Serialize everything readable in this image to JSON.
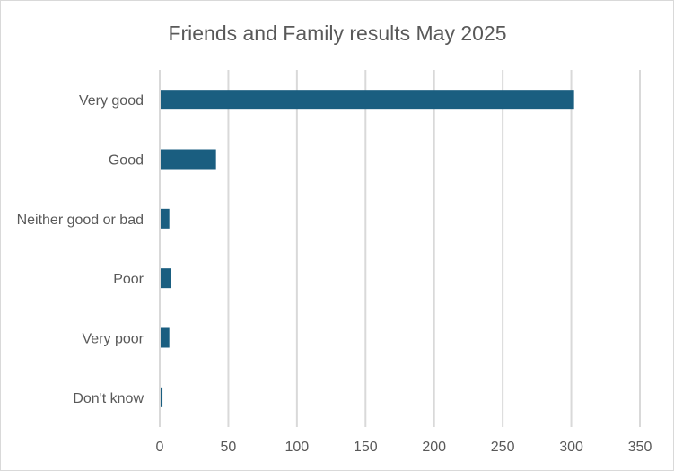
{
  "chart_data": {
    "type": "bar",
    "orientation": "horizontal",
    "title": "Friends and Family results May 2025",
    "categories": [
      "Very good",
      "Good",
      "Neither good or bad",
      "Poor",
      "Very poor",
      "Don't know"
    ],
    "values": [
      302,
      41,
      7,
      8,
      7,
      2
    ],
    "xlim": [
      0,
      350
    ],
    "xticks": [
      0,
      50,
      100,
      150,
      200,
      250,
      300,
      350
    ],
    "xlabel": "",
    "ylabel": "",
    "grid": true,
    "bar_color": "#1A5E80",
    "legend": "none"
  }
}
